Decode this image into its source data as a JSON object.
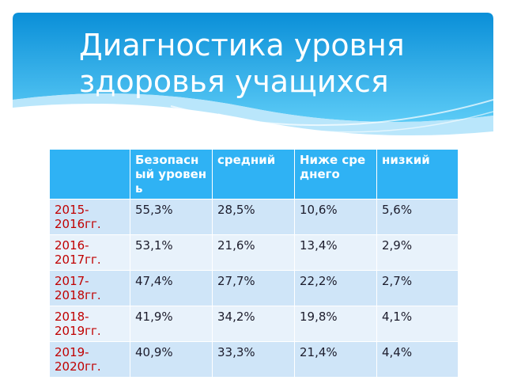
{
  "header": {
    "title": "Диагностика уровня здоровья учащихся"
  },
  "table": {
    "columns": [
      "Безопасный уровень",
      "средний",
      "Ниже среднего",
      "низкий"
    ],
    "rows": [
      [
        "2015-2016гг.",
        "55,3%",
        "28,5%",
        "10,6%",
        "5,6%"
      ],
      [
        "2016-2017гг.",
        "53,1%",
        "21,6%",
        "13,4%",
        "2,9%"
      ],
      [
        "2017-2018гг.",
        "47,4%",
        "27,7%",
        "22,2%",
        "2,7%"
      ],
      [
        "2018-2019гг.",
        "41,9%",
        "34,2%",
        "19,8%",
        "4,1%"
      ],
      [
        "2019-2020гг.",
        "40,9%",
        "33,3%",
        "21,4%",
        "4,4%"
      ]
    ]
  }
}
